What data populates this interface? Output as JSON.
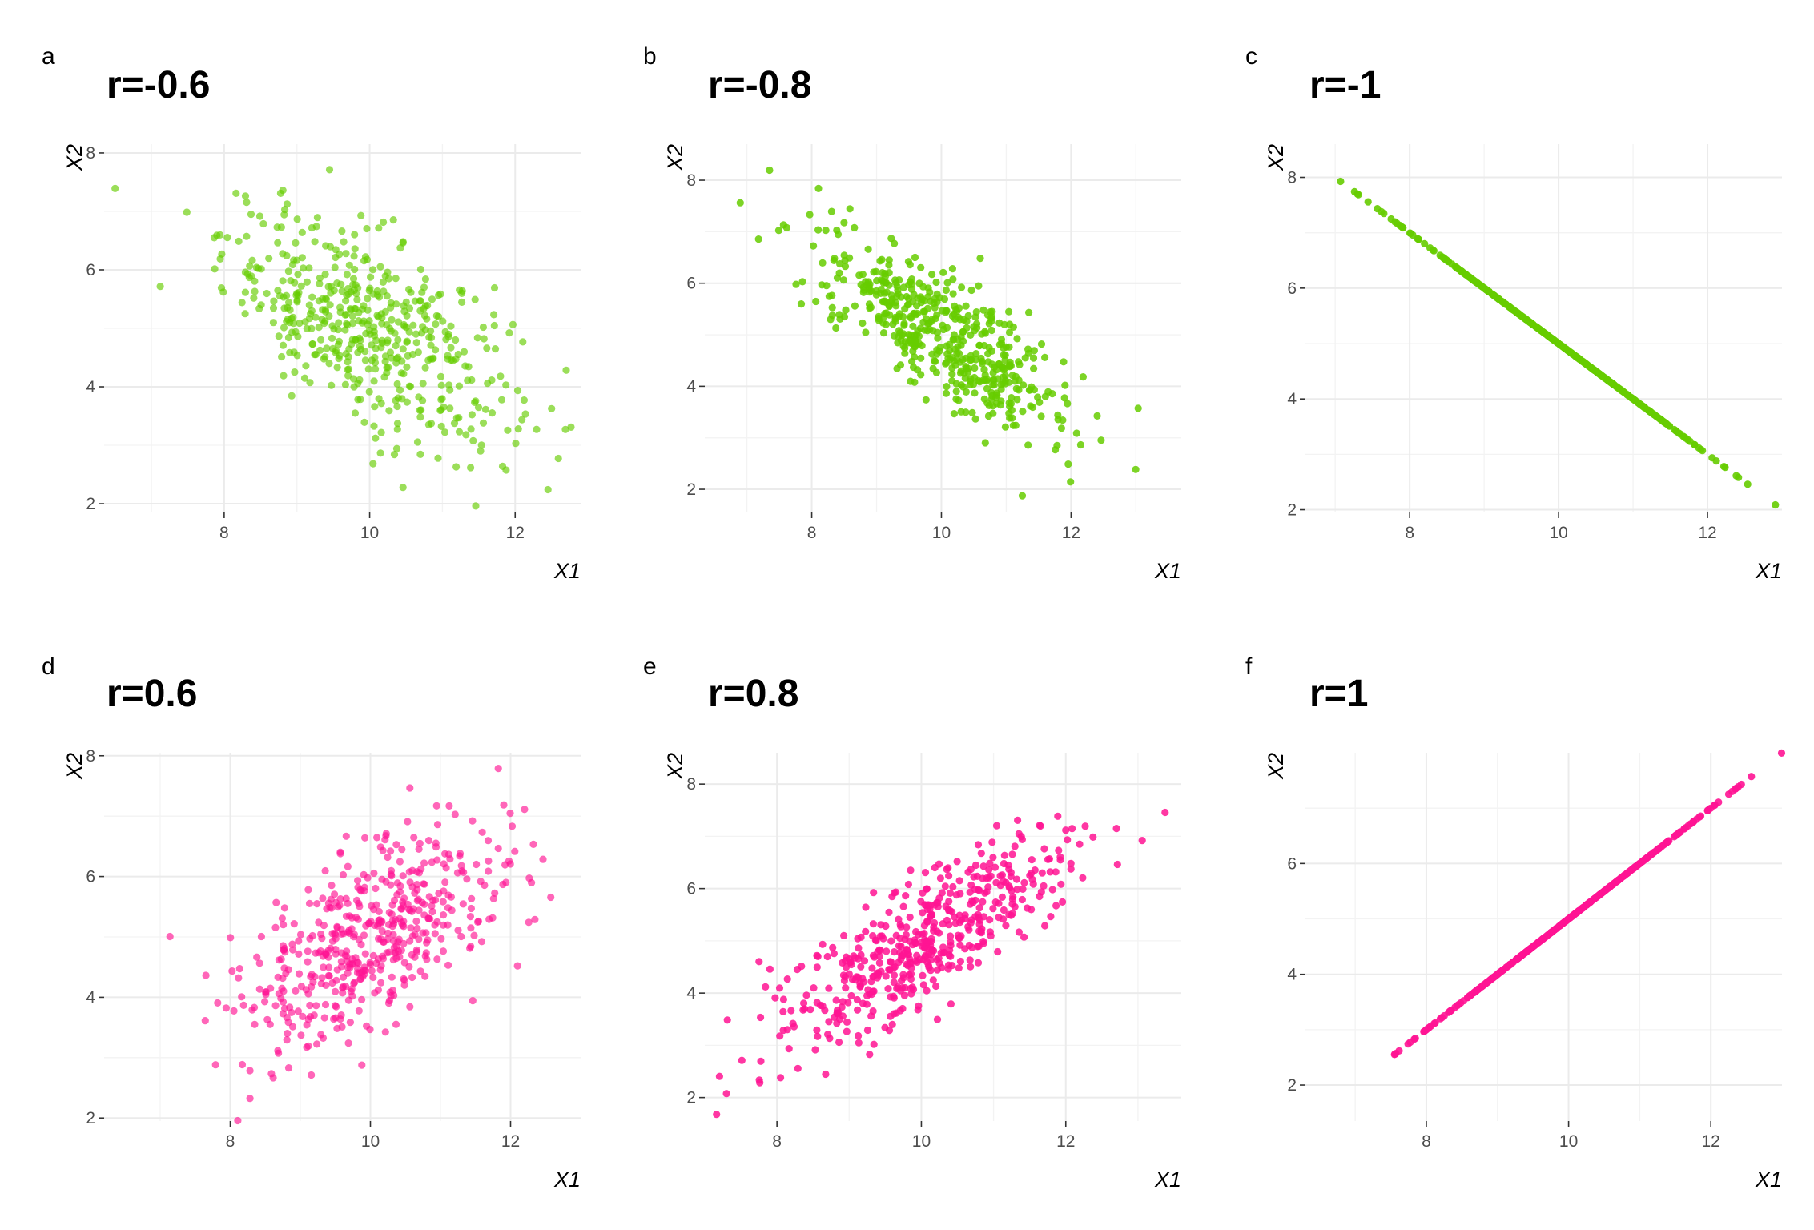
{
  "chart_data": [
    {
      "type": "scatter",
      "letter": "a",
      "title": "r=-0.6",
      "xlabel": "X1",
      "ylabel": "X2",
      "r": -0.6,
      "color": "#66CC00",
      "alpha": 0.65,
      "n": 500,
      "xlim": [
        6.35,
        12.9
      ],
      "ylim": [
        1.85,
        8.15
      ],
      "xticks": [
        8,
        10,
        12
      ],
      "xtick_labels": [
        "8",
        "10",
        "12"
      ],
      "yticks": [
        2,
        4,
        6,
        8
      ],
      "ytick_labels": [
        "2",
        "4",
        "6",
        "8"
      ],
      "grid": true,
      "legend": "none"
    },
    {
      "type": "scatter",
      "letter": "b",
      "title": "r=-0.8",
      "xlabel": "X1",
      "ylabel": "X2",
      "r": -0.8,
      "color": "#66CC00",
      "alpha": 0.85,
      "n": 500,
      "xlim": [
        6.35,
        13.7
      ],
      "ylim": [
        1.55,
        8.7
      ],
      "xticks": [
        8,
        10,
        12
      ],
      "xtick_labels": [
        "8",
        "10",
        "12"
      ],
      "yticks": [
        2,
        4,
        6,
        8
      ],
      "ytick_labels": [
        "2",
        "4",
        "6",
        "8"
      ],
      "grid": true,
      "legend": "none"
    },
    {
      "type": "scatter",
      "letter": "c",
      "title": "r=-1",
      "xlabel": "X1",
      "ylabel": "X2",
      "r": -1,
      "color": "#66CC00",
      "alpha": 0.9,
      "n": 500,
      "xlim": [
        6.6,
        13.0
      ],
      "ylim": [
        1.95,
        8.6
      ],
      "xticks": [
        8,
        10,
        12
      ],
      "xtick_labels": [
        "8",
        "10",
        "12"
      ],
      "yticks": [
        2,
        4,
        6,
        8
      ],
      "ytick_labels": [
        "2",
        "4",
        "6",
        "8"
      ],
      "grid": true,
      "legend": "none"
    },
    {
      "type": "scatter",
      "letter": "d",
      "title": "r=0.6",
      "xlabel": "X1",
      "ylabel": "X2",
      "r": 0.6,
      "color": "#FF1493",
      "alpha": 0.65,
      "n": 500,
      "xlim": [
        6.2,
        13.0
      ],
      "ylim": [
        1.95,
        8.05
      ],
      "xticks": [
        8,
        10,
        12
      ],
      "xtick_labels": [
        "8",
        "10",
        "12"
      ],
      "yticks": [
        2,
        4,
        6,
        8
      ],
      "ytick_labels": [
        "2",
        "4",
        "6",
        "8"
      ],
      "grid": true,
      "legend": "none"
    },
    {
      "type": "scatter",
      "letter": "e",
      "title": "r=0.8",
      "xlabel": "X1",
      "ylabel": "X2",
      "r": 0.8,
      "color": "#FF1493",
      "alpha": 0.85,
      "n": 500,
      "xlim": [
        7.0,
        13.6
      ],
      "ylim": [
        1.55,
        8.6
      ],
      "xticks": [
        8,
        10,
        12
      ],
      "xtick_labels": [
        "8",
        "10",
        "12"
      ],
      "yticks": [
        2,
        4,
        6,
        8
      ],
      "ytick_labels": [
        "2",
        "4",
        "6",
        "8"
      ],
      "grid": true,
      "legend": "none"
    },
    {
      "type": "scatter",
      "letter": "f",
      "title": "r=1",
      "xlabel": "X1",
      "ylabel": "X2",
      "r": 1,
      "color": "#FF1493",
      "alpha": 0.9,
      "n": 500,
      "xlim": [
        6.3,
        13.0
      ],
      "ylim": [
        1.35,
        8.0
      ],
      "xticks": [
        8,
        10,
        12
      ],
      "xtick_labels": [
        "8",
        "10",
        "12"
      ],
      "yticks": [
        2,
        4,
        6
      ],
      "ytick_labels": [
        "2",
        "4",
        "6"
      ],
      "grid": true,
      "legend": "none"
    }
  ]
}
